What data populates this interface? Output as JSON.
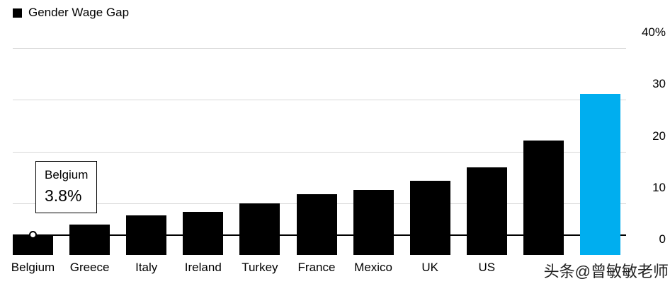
{
  "legend": {
    "label": "Gender Wage Gap",
    "swatch_color": "#000000"
  },
  "tooltip": {
    "country": "Belgium",
    "value": "3.8%"
  },
  "watermark": {
    "text": "头条@曾敏敏老师"
  },
  "colors": {
    "bar": "#000000",
    "highlight": "#00aeef",
    "gridline": "#d7d7d7",
    "reference_line": "#000000",
    "background": "#ffffff"
  },
  "y_axis": {
    "ticks": [
      {
        "value": 40,
        "label": "40%"
      },
      {
        "value": 30,
        "label": "30"
      },
      {
        "value": 20,
        "label": "20"
      },
      {
        "value": 10,
        "label": "10"
      },
      {
        "value": 0,
        "label": "0"
      }
    ]
  },
  "chart_data": {
    "type": "bar",
    "title": "Gender Wage Gap",
    "categories": [
      "Belgium",
      "Greece",
      "Italy",
      "Ireland",
      "Turkey",
      "France",
      "Mexico",
      "UK",
      "US",
      "",
      ""
    ],
    "values": [
      3.8,
      5.9,
      7.6,
      8.3,
      10.0,
      11.8,
      12.5,
      14.3,
      16.9,
      22.1,
      31.1
    ],
    "highlight_index": 10,
    "ylim": [
      0,
      40
    ],
    "xlabel": "",
    "ylabel": "",
    "grid": true,
    "legend_position": "top-left",
    "annotation": {
      "category": "Belgium",
      "label": "Belgium",
      "value_label": "3.8%",
      "value": 3.8
    }
  }
}
